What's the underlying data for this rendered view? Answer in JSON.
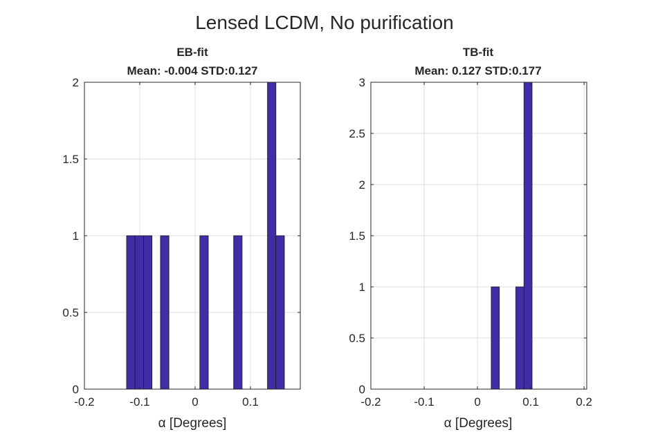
{
  "figure": {
    "title": "Lensed LCDM, No purification"
  },
  "colors": {
    "bar_fill": "#3f2ea6",
    "bar_edge": "#1a1a1a",
    "grid": "#dcdcdc",
    "axis": "#262626"
  },
  "chart_data": [
    {
      "type": "bar",
      "title": "EB-fit",
      "subtitle": "Mean: -0.004 STD:0.127",
      "xlabel": "α [Degrees]",
      "ylabel": "",
      "xlim": [
        -0.2,
        0.19
      ],
      "ylim": [
        0,
        2
      ],
      "xticks": [
        -0.2,
        -0.1,
        0,
        0.1
      ],
      "xtick_labels": [
        "-0.2",
        "-0.1",
        "0",
        "0.1"
      ],
      "yticks": [
        0,
        0.5,
        1,
        1.5,
        2
      ],
      "ytick_labels": [
        "0",
        "0.5",
        "1",
        "1.5",
        "2"
      ],
      "grid": true,
      "bin_width": 0.0153,
      "bars": [
        {
          "x0": -0.1238,
          "count": 1
        },
        {
          "x0": -0.1085,
          "count": 1
        },
        {
          "x0": -0.0932,
          "count": 1
        },
        {
          "x0": -0.0626,
          "count": 1
        },
        {
          "x0": 0.0085,
          "count": 1
        },
        {
          "x0": 0.0696,
          "count": 1
        },
        {
          "x0": 0.1307,
          "count": 2
        },
        {
          "x0": 0.146,
          "count": 1
        }
      ]
    },
    {
      "type": "bar",
      "title": "TB-fit",
      "subtitle": "Mean: 0.127 STD:0.177",
      "xlabel": "α [Degrees]",
      "ylabel": "",
      "xlim": [
        -0.2,
        0.205
      ],
      "ylim": [
        0,
        3
      ],
      "xticks": [
        -0.2,
        -0.1,
        0,
        0.1,
        0.2
      ],
      "xtick_labels": [
        "-0.2",
        "-0.1",
        "0",
        "0.1",
        "0.2"
      ],
      "yticks": [
        0,
        0.5,
        1,
        1.5,
        2,
        2.5,
        3
      ],
      "ytick_labels": [
        "0",
        "0.5",
        "1",
        "1.5",
        "2",
        "2.5",
        "3"
      ],
      "grid": true,
      "bin_width": 0.0153,
      "bars": [
        {
          "x0": 0.0258,
          "count": 1
        },
        {
          "x0": 0.0719,
          "count": 1
        },
        {
          "x0": 0.0872,
          "count": 3
        }
      ]
    }
  ]
}
